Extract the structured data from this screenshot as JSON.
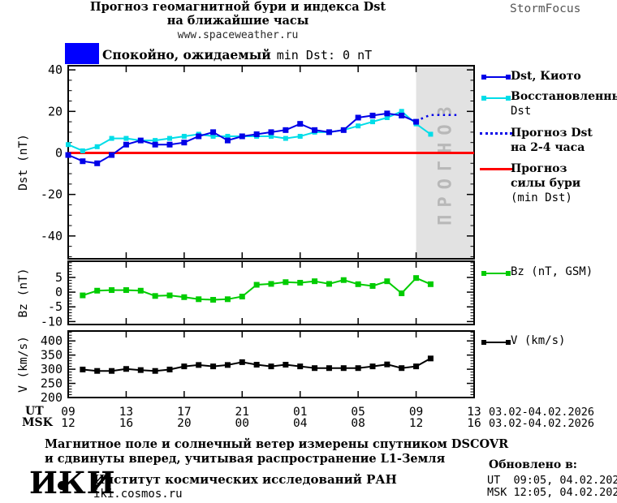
{
  "header": {
    "title_line1": "Прогноз геомагнитной бури и индекса Dst",
    "title_line2": "на ближайшие часы",
    "website": "www.spaceweather.ru",
    "brand": "StormFocus"
  },
  "status_banner": {
    "color": "#0000ff",
    "level_text": "Спокойно, ожидаемый",
    "value_text": "min Dst: 0 nT"
  },
  "chart_data": {
    "type": "line",
    "title": "Прогноз геомагнитной бури и индекса Dst на ближайшие часы",
    "x_unit": "hours from 09:00 UT 03.02.2026",
    "x_range_hours": [
      0,
      28
    ],
    "x_major_ticks_hours": [
      0,
      4,
      8,
      12,
      16,
      20,
      24,
      28
    ],
    "x_tick_labels_ut": [
      "09",
      "13",
      "17",
      "21",
      "01",
      "05",
      "09",
      "13"
    ],
    "x_tick_labels_msk": [
      "12",
      "16",
      "20",
      "00",
      "04",
      "08",
      "12",
      "16"
    ],
    "forecast_region": {
      "start_hour": 24,
      "label": "ПРОГНОЗ",
      "fill": "#e2e2e2",
      "text_color": "#b8b8b8"
    },
    "panels": [
      {
        "id": "dst",
        "ylabel": "Dst (nT)",
        "ylim": [
          -51,
          42
        ],
        "yticks": [
          40,
          20,
          0,
          -20,
          -40
        ],
        "yminor_step": 5,
        "series": [
          {
            "name": "Dst, Киото",
            "color": "#0000e8",
            "style": "solid",
            "marker": 7,
            "width": 2,
            "layer": 3,
            "x_start": 0,
            "x_step": 1,
            "values": [
              -1,
              -4,
              -5,
              -1,
              4,
              6,
              4,
              4,
              5,
              8,
              10,
              6,
              8,
              9,
              10,
              11,
              14,
              11,
              10,
              11,
              17,
              18,
              19,
              18,
              15
            ]
          },
          {
            "name": "Восстановленный Dst",
            "color": "#00dde8",
            "style": "solid",
            "marker": 6,
            "width": 2,
            "layer": 2,
            "x_start": 0,
            "x_step": 1,
            "values": [
              4,
              1,
              3,
              7,
              7,
              6,
              6,
              7,
              8,
              9,
              8,
              8,
              8,
              8,
              8,
              7,
              8,
              10,
              10,
              11,
              13,
              15,
              17,
              20,
              14,
              9
            ]
          },
          {
            "name": "Прогноз Dst на 2-4 часа",
            "color": "#0000e8",
            "style": "dotted",
            "width": 2.5,
            "layer": 4,
            "points": [
              [
                24,
                15
              ],
              [
                24.5,
                17
              ],
              [
                25,
                18.3
              ],
              [
                27,
                18.3
              ]
            ]
          },
          {
            "name": "Прогноз силы бури (min Dst)",
            "color": "#ff0000",
            "style": "solid",
            "width": 3,
            "layer": 1,
            "points": [
              [
                0,
                0
              ],
              [
                28,
                0
              ]
            ]
          }
        ]
      },
      {
        "id": "bz",
        "ylabel": "Bz (nT)",
        "ylim": [
          -11,
          10.5
        ],
        "yticks": [
          5,
          0,
          -5,
          -10
        ],
        "yminor_step": 1,
        "series": [
          {
            "name": "Bz (nT, GSM)",
            "color": "#00cc00",
            "style": "solid",
            "marker": 7,
            "width": 2,
            "layer": 1,
            "x_start": 1,
            "x_step": 1,
            "values": [
              -1.1,
              0.5,
              0.7,
              0.7,
              0.5,
              -1.3,
              -1.1,
              -1.7,
              -2.4,
              -2.6,
              -2.4,
              -1.5,
              2.5,
              2.8,
              3.4,
              3.2,
              3.7,
              2.8,
              4.1,
              2.7,
              2.1,
              3.7,
              -0.4,
              4.8,
              2.7
            ]
          }
        ]
      },
      {
        "id": "v",
        "ylabel": "V (km/s)",
        "ylim": [
          200,
          435
        ],
        "yticks": [
          400,
          350,
          300,
          250,
          200
        ],
        "yminor_step": 10,
        "series": [
          {
            "name": "V (km/s)",
            "color": "#000000",
            "style": "solid",
            "marker": 7,
            "width": 2,
            "layer": 1,
            "x_start": 1,
            "x_step": 1,
            "values": [
              299,
              294,
              294,
              301,
              297,
              294,
              299,
              310,
              315,
              310,
              315,
              325,
              316,
              310,
              316,
              310,
              304,
              304,
              304,
              304,
              310,
              317,
              304,
              310,
              338
            ]
          }
        ]
      }
    ]
  },
  "legend": {
    "dst_label": "Dst, Киото",
    "restored_line1": "Восстановленный",
    "restored_line2": "Dst",
    "forecast_line1": "Прогноз Dst",
    "forecast_line2": "на 2-4 часа",
    "storm_line1": "Прогноз",
    "storm_line2": "силы бури",
    "storm_line3": "(min Dst)",
    "bz_label": "Bz (nT, GSM)",
    "v_label": "V (km/s)"
  },
  "xaxis": {
    "ut_prefix": "UT",
    "msk_prefix": "MSK",
    "date_range": "03.02-04.02.2026"
  },
  "footer": {
    "note_line1": "Магнитное поле и солнечный ветер измерены спутником DSCOVR",
    "note_line2": "и сдвинуты вперед, учитывая распространение L1-Земля",
    "logo": "ИКИ",
    "institute": "Институт космических исследований РАН",
    "website": "iki.cosmos.ru"
  },
  "updated": {
    "heading": "Обновлено в:",
    "ut": "UT  09:05, 04.02.2026",
    "msk": "MSK 12:05, 04.02.2026"
  }
}
